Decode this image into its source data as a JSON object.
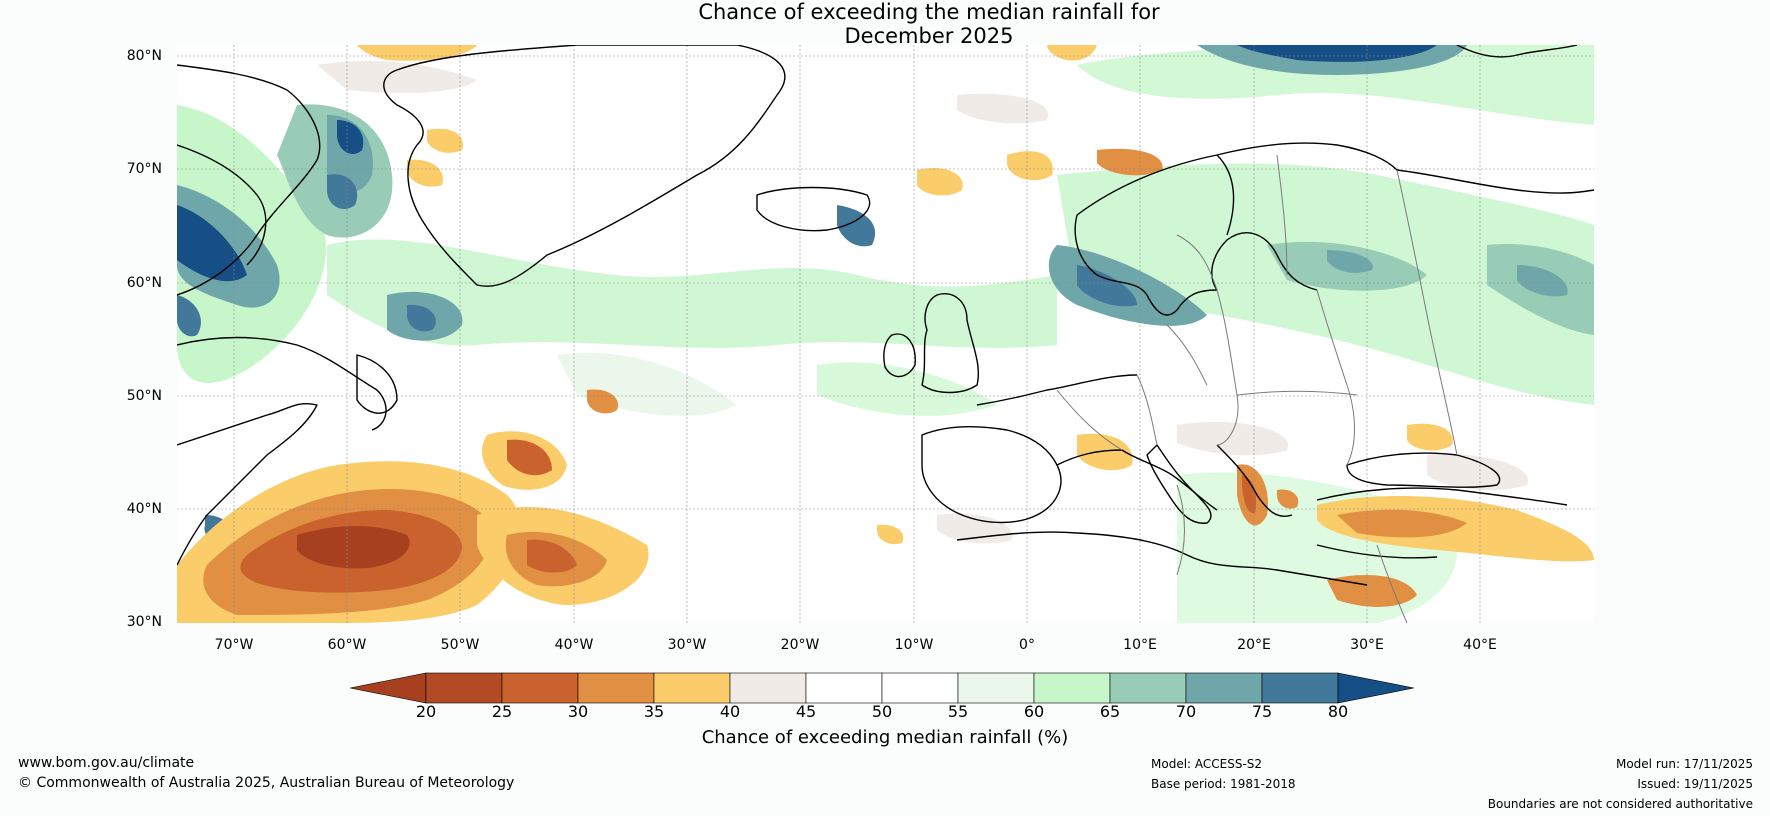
{
  "title": {
    "line1": "Chance of exceeding the median rainfall for",
    "line2": "December 2025"
  },
  "map": {
    "projection": "equirectangular",
    "lon_range": [
      -75,
      50
    ],
    "lat_range": [
      30,
      81
    ],
    "lat_labels": [
      "80°N",
      "70°N",
      "60°N",
      "50°N",
      "40°N",
      "30°N"
    ],
    "lon_labels": [
      "70°W",
      "60°W",
      "50°W",
      "40°W",
      "30°W",
      "20°W",
      "10°W",
      "0°",
      "10°E",
      "20°E",
      "30°E",
      "40°E"
    ],
    "grid": true
  },
  "colorbar": {
    "ticks": [
      "20",
      "25",
      "30",
      "35",
      "40",
      "45",
      "50",
      "55",
      "60",
      "65",
      "70",
      "75",
      "80"
    ],
    "colors": [
      "#a6401f",
      "#b14a25",
      "#c9622d",
      "#e08f43",
      "#fbcd6a",
      "#f0ebe6",
      "#ffffff",
      "#ffffff",
      "#eaf7ea",
      "#c8f6cb",
      "#98ccb6",
      "#6fa6aa",
      "#42789a",
      "#164f85"
    ],
    "label": "Chance of exceeding median rainfall (%)"
  },
  "footer": {
    "website": "www.bom.gov.au/climate",
    "copyright": "© Commonwealth of Australia 2025, Australian Bureau of Meteorology",
    "model": "Model: ACCESS-S2",
    "base_period": "Base period: 1981-2018",
    "model_run": "Model run: 17/11/2025",
    "issued": "Issued: 19/11/2025",
    "disclaimer": "Boundaries are not considered authoritative"
  }
}
